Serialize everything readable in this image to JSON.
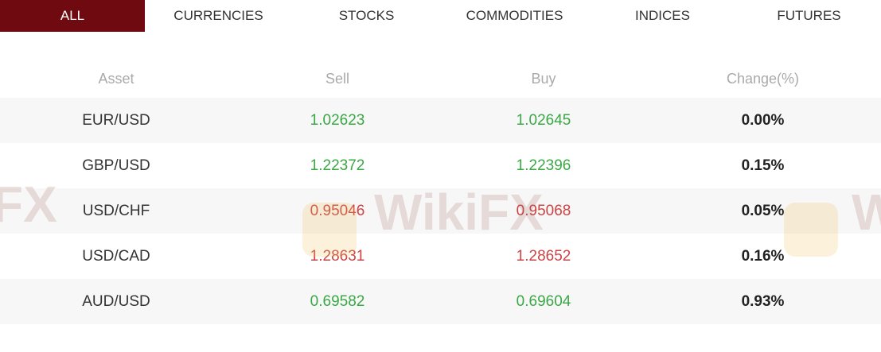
{
  "tabs": [
    {
      "label": "ALL",
      "active": true
    },
    {
      "label": "CURRENCIES"
    },
    {
      "label": "STOCKS"
    },
    {
      "label": "COMMODITIES"
    },
    {
      "label": "INDICES"
    },
    {
      "label": "FUTURES"
    }
  ],
  "table": {
    "headers": {
      "asset": "Asset",
      "sell": "Sell",
      "buy": "Buy",
      "change": "Change(%)"
    },
    "rows": [
      {
        "asset": "EUR/USD",
        "sell": "1.02623",
        "buy": "1.02645",
        "change": "0.00%",
        "direction": "up"
      },
      {
        "asset": "GBP/USD",
        "sell": "1.22372",
        "buy": "1.22396",
        "change": "0.15%",
        "direction": "up"
      },
      {
        "asset": "USD/CHF",
        "sell": "0.95046",
        "buy": "0.95068",
        "change": "0.05%",
        "direction": "down"
      },
      {
        "asset": "USD/CAD",
        "sell": "1.28631",
        "buy": "1.28652",
        "change": "0.16%",
        "direction": "down"
      },
      {
        "asset": "AUD/USD",
        "sell": "0.69582",
        "buy": "0.69604",
        "change": "0.93%",
        "direction": "up"
      }
    ]
  },
  "colors": {
    "accent": "#6e0a10",
    "up": "#3aa845",
    "down": "#cc4444"
  },
  "watermark": "WikiFX"
}
